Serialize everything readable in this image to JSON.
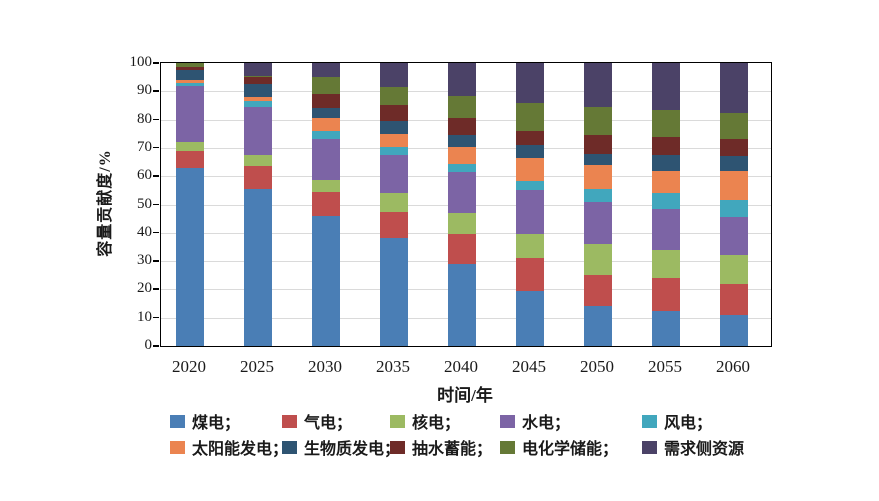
{
  "figure": {
    "y_axis_title": "容量贡献度/%",
    "x_axis_title": "时间/年"
  },
  "chart_data": {
    "type": "bar",
    "stacked": true,
    "title": "",
    "xlabel": "时间/年",
    "ylabel": "容量贡献度/%",
    "ylim": [
      0,
      100
    ],
    "ytick_interval": 10,
    "yticks": [
      0,
      10,
      20,
      30,
      40,
      50,
      60,
      70,
      80,
      90,
      100
    ],
    "grid": "horizontal",
    "legend_position": "bottom",
    "categories": [
      "2020",
      "2025",
      "2030",
      "2035",
      "2040",
      "2045",
      "2050",
      "2055",
      "2060"
    ],
    "series": [
      {
        "name": "煤电",
        "color": "#4A7EB5",
        "values": [
          63,
          55.5,
          46,
          38,
          29,
          19.5,
          14,
          12.5,
          11
        ]
      },
      {
        "name": "气电",
        "color": "#BF4E4D",
        "values": [
          6,
          8,
          8.5,
          9.5,
          10.5,
          11.5,
          11,
          11.5,
          11
        ]
      },
      {
        "name": "核电",
        "color": "#9CBA62",
        "values": [
          3,
          4,
          4,
          6.5,
          7.5,
          8.5,
          11,
          10,
          10
        ]
      },
      {
        "name": "水电",
        "color": "#7C64A5",
        "values": [
          20,
          17,
          14.5,
          13.5,
          14.5,
          15.5,
          15,
          14.5,
          13.5
        ]
      },
      {
        "name": "风电",
        "color": "#41A7BD",
        "values": [
          1,
          2,
          3,
          3,
          3,
          3.5,
          4.5,
          5.5,
          6
        ]
      },
      {
        "name": "太阳能发电",
        "color": "#EB8450",
        "values": [
          1,
          1.5,
          4.5,
          4.5,
          6,
          8,
          8.5,
          8,
          10.5
        ]
      },
      {
        "name": "生物质发电",
        "color": "#2E5472",
        "values": [
          3.5,
          4.5,
          3.5,
          4.5,
          4,
          4.5,
          4,
          5.5,
          5
        ]
      },
      {
        "name": "抽水蓄能",
        "color": "#6E2B28",
        "values": [
          1,
          2.5,
          5,
          5.5,
          6,
          5,
          6.5,
          6.5,
          6
        ]
      },
      {
        "name": "电化学储能",
        "color": "#657936",
        "values": [
          1.5,
          0.5,
          6,
          6.5,
          8,
          10,
          10,
          9.5,
          9.5
        ]
      },
      {
        "name": "需求侧资源",
        "color": "#4B4267",
        "values": [
          0,
          4.5,
          5,
          8.5,
          11.5,
          14,
          15.5,
          16.5,
          17.5
        ]
      }
    ]
  },
  "legend": {
    "labels": [
      "煤电；",
      "气电；",
      "核电；",
      "水电；",
      "风电；",
      "太阳能发电；",
      "生物质发电；",
      "抽水蓄能；",
      "电化学储能；",
      "需求侧资源"
    ]
  }
}
